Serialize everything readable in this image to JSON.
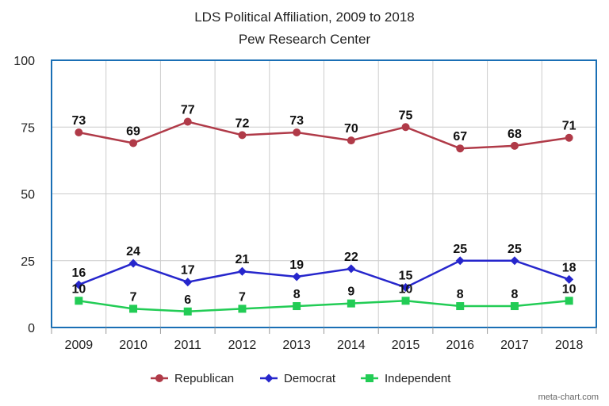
{
  "chart_data": {
    "type": "line",
    "title": "LDS Political Affiliation, 2009 to 2018",
    "subtitle": "Pew Research Center",
    "xlabel": "",
    "ylabel": "",
    "categories": [
      "2009",
      "2010",
      "2011",
      "2012",
      "2013",
      "2014",
      "2015",
      "2016",
      "2017",
      "2018"
    ],
    "ylim": [
      0,
      100
    ],
    "yticks": [
      "0",
      "25",
      "50",
      "75",
      "100"
    ],
    "grid": true,
    "legend_position": "bottom",
    "series": [
      {
        "name": "Republican",
        "color": "#b03a48",
        "marker": "circle",
        "values": [
          73,
          69,
          77,
          72,
          73,
          70,
          75,
          67,
          68,
          71
        ]
      },
      {
        "name": "Democrat",
        "color": "#2626cc",
        "marker": "diamond",
        "values": [
          16,
          24,
          17,
          21,
          19,
          22,
          15,
          25,
          25,
          18
        ]
      },
      {
        "name": "Independent",
        "color": "#22cc55",
        "marker": "square",
        "values": [
          10,
          7,
          6,
          7,
          8,
          9,
          10,
          8,
          8,
          10
        ]
      }
    ]
  },
  "credit": "meta-chart.com",
  "colors": {
    "frame": "#1a6fb5",
    "grid": "#cccccc"
  }
}
